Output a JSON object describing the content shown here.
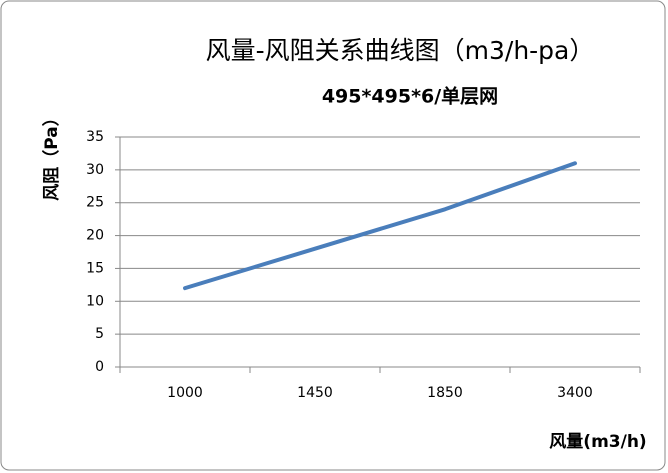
{
  "chart_data": {
    "type": "line",
    "title": "风量-风阻关系曲线图（m3/h-pa）",
    "subtitle": "495*495*6/单层网",
    "x_label": "风量(m3/h)",
    "y_label": "风阻（Pa）",
    "categories": [
      "1000",
      "1450",
      "1850",
      "3400"
    ],
    "values": [
      12,
      18,
      24,
      31
    ],
    "color": "#4a7ebb",
    "ylim": [
      0,
      35
    ],
    "yticks": [
      0,
      5,
      10,
      15,
      20,
      25,
      30,
      35
    ],
    "grid": true
  }
}
